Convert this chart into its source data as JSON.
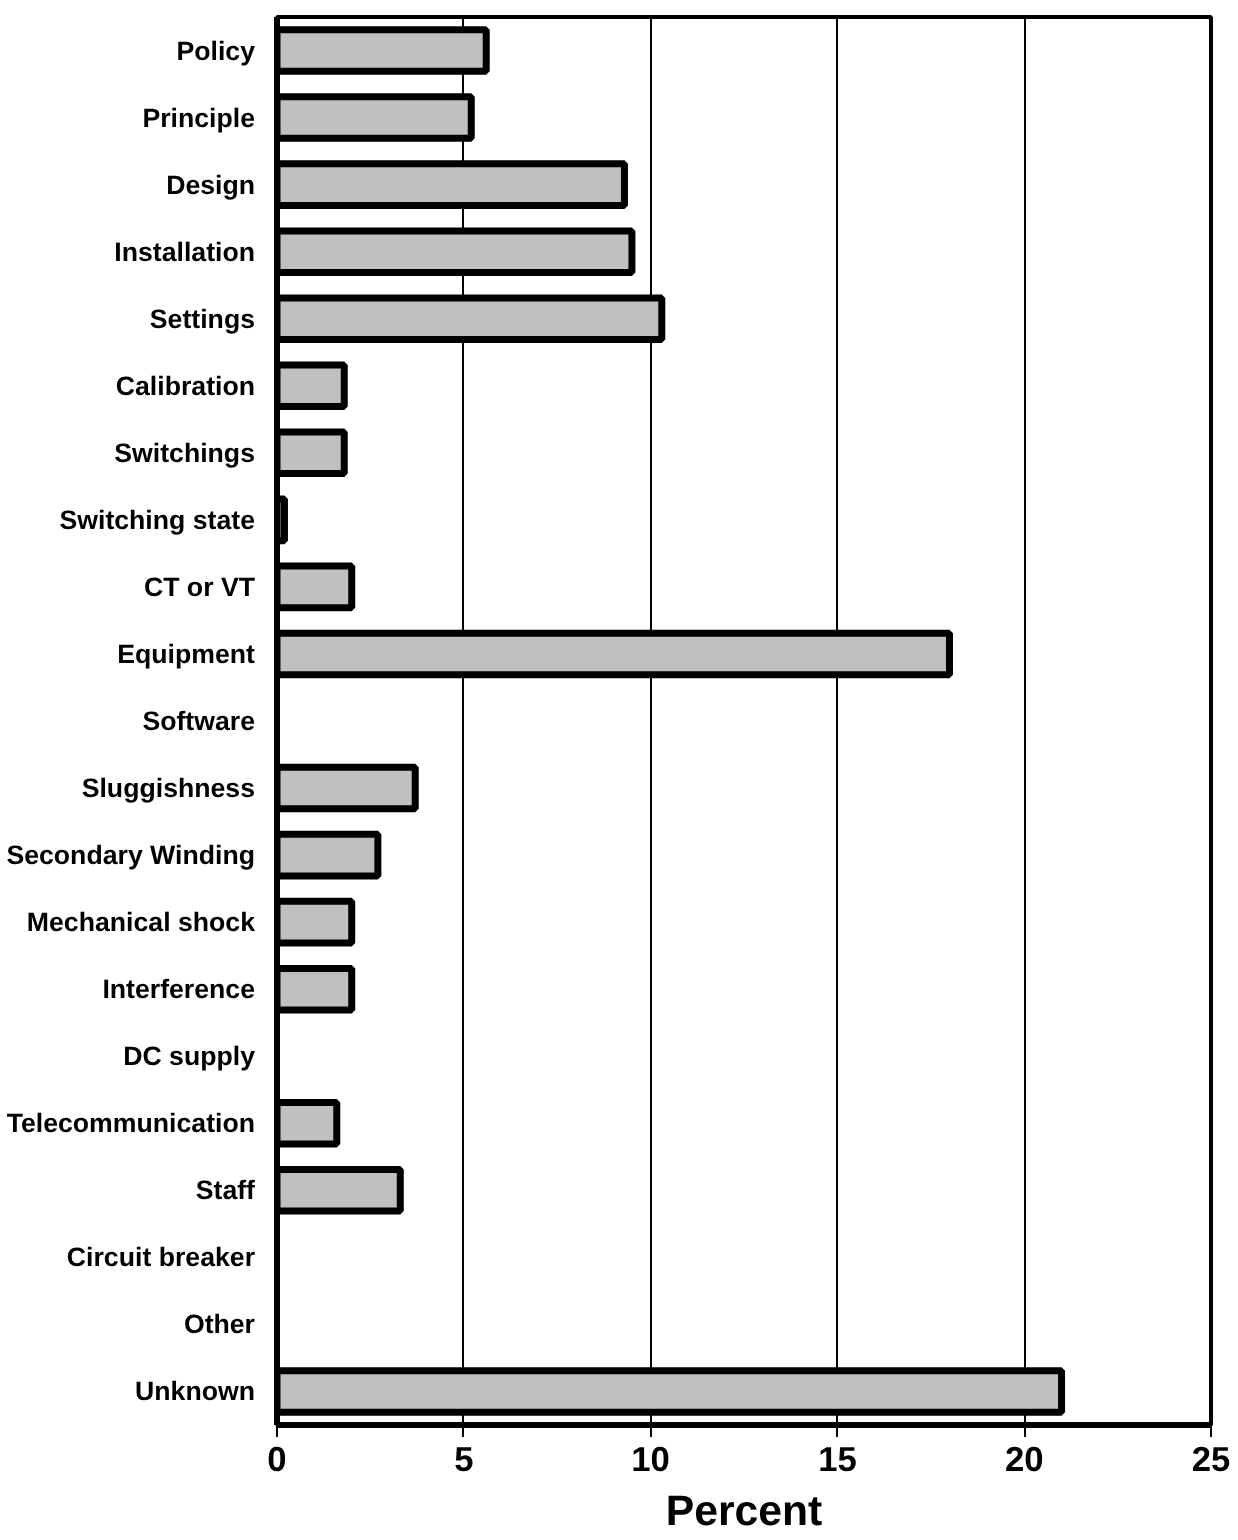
{
  "chart_data": {
    "type": "bar",
    "orientation": "horizontal",
    "xlabel": "Percent",
    "categories": [
      "Policy",
      "Principle",
      "Design",
      "Installation",
      "Settings",
      "Calibration",
      "Switchings",
      "Switching state",
      "CT or VT",
      "Equipment",
      "Software",
      "Sluggishness",
      "Secondary Winding",
      "Mechanical shock",
      "Interference",
      "DC supply",
      "Telecommunication",
      "Staff",
      "Circuit breaker",
      "Other",
      "Unknown"
    ],
    "values": [
      5.6,
      5.2,
      9.3,
      9.5,
      10.3,
      1.8,
      1.8,
      0.2,
      2.0,
      18.0,
      0,
      3.7,
      2.7,
      2.0,
      2.0,
      0,
      1.6,
      3.3,
      0,
      0,
      21.0
    ],
    "color": "#c0c0c0",
    "xlim": [
      0,
      25
    ],
    "xticks": [
      0,
      5,
      10,
      15,
      20,
      25
    ],
    "grid": "x"
  }
}
